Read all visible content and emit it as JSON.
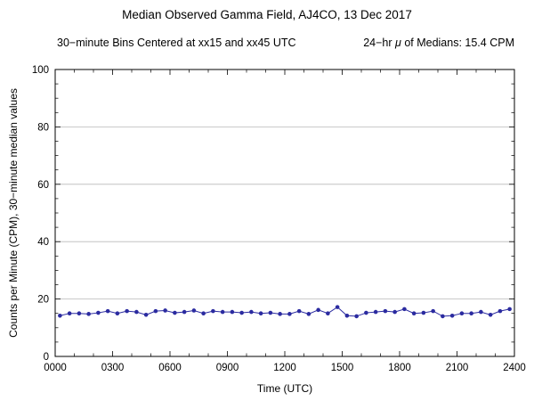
{
  "title": "Median Observed Gamma Field, AJ4CO, 13 Dec 2017",
  "subtitle": {
    "left": "30−minute Bins Centered at xx15 and xx45 UTC",
    "right_prefix": "24−hr ",
    "right_mu": "μ",
    "right_suffix": " of Medians: 15.4 CPM"
  },
  "colors": {
    "series": "#2b2ba0",
    "grid": "#b9b9b9",
    "frame": "#000000"
  },
  "chart_data": {
    "type": "line",
    "title": "Median Observed Gamma Field, AJ4CO, 13 Dec 2017",
    "subtitle": "30−minute Bins Centered at xx15 and xx45 UTC    24−hr μ of Medians: 15.4 CPM",
    "xlabel": "Time (UTC)",
    "ylabel": "Counts per Minute (CPM), 30−minute median values",
    "xlim": [
      0,
      24
    ],
    "ylim": [
      0,
      100
    ],
    "grid": "horizontal",
    "legend": "none",
    "mean_of_medians_cpm": 15.4,
    "x_hours": [
      0.25,
      0.75,
      1.25,
      1.75,
      2.25,
      2.75,
      3.25,
      3.75,
      4.25,
      4.75,
      5.25,
      5.75,
      6.25,
      6.75,
      7.25,
      7.75,
      8.25,
      8.75,
      9.25,
      9.75,
      10.25,
      10.75,
      11.25,
      11.75,
      12.25,
      12.75,
      13.25,
      13.75,
      14.25,
      14.75,
      15.25,
      15.75,
      16.25,
      16.75,
      17.25,
      17.75,
      18.25,
      18.75,
      19.25,
      19.75,
      20.25,
      20.75,
      21.25,
      21.75,
      22.25,
      22.75,
      23.25,
      23.75
    ],
    "values": [
      14.2,
      15.0,
      15.0,
      14.8,
      15.2,
      15.8,
      15.0,
      15.8,
      15.5,
      14.5,
      15.8,
      16.0,
      15.2,
      15.5,
      16.0,
      15.0,
      15.8,
      15.5,
      15.5,
      15.2,
      15.5,
      15.0,
      15.2,
      14.8,
      14.8,
      15.8,
      14.8,
      16.2,
      15.0,
      17.2,
      14.2,
      14.0,
      15.2,
      15.5,
      15.8,
      15.5,
      16.5,
      15.0,
      15.2,
      15.8,
      14.0,
      14.2,
      15.0,
      15.0,
      15.5,
      14.5,
      15.8,
      16.5
    ],
    "xticks": {
      "values": [
        0,
        3,
        6,
        9,
        12,
        15,
        18,
        21,
        24
      ],
      "labels": [
        "0000",
        "0300",
        "0600",
        "0900",
        "1200",
        "1500",
        "1800",
        "2100",
        "2400"
      ]
    },
    "yticks": {
      "values": [
        0,
        20,
        40,
        60,
        80,
        100
      ],
      "labels": [
        "0",
        "20",
        "40",
        "60",
        "80",
        "100"
      ]
    },
    "ygrid": [
      20,
      40,
      60,
      80
    ]
  }
}
